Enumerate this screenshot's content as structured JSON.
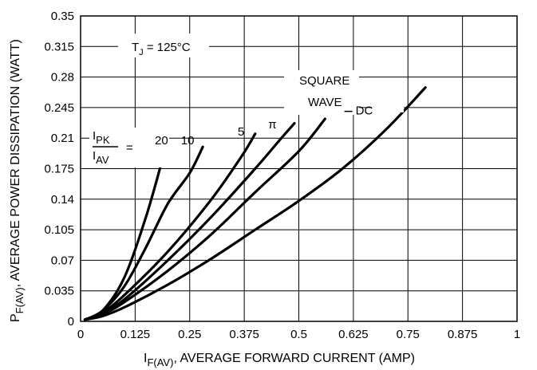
{
  "chart_data": {
    "type": "line",
    "title": "",
    "xlabel": {
      "prefix": "I",
      "sub": "F(AV)",
      "rest": ", AVERAGE FORWARD CURRENT (AMP)"
    },
    "ylabel": {
      "prefix": "P",
      "sub": "F(AV)",
      "rest": ", AVERAGE POWER DISSIPATION (WATT)"
    },
    "xlim": [
      0,
      1
    ],
    "ylim": [
      0,
      0.35
    ],
    "grid": true,
    "x_ticks": [
      0,
      0.125,
      0.25,
      0.375,
      0.5,
      0.625,
      0.75,
      0.875,
      1
    ],
    "x_tick_labels": [
      "0",
      "0.125",
      "0.25",
      "0.375",
      "0.5",
      "0.625",
      "0.75",
      "0.875",
      "1"
    ],
    "y_ticks": [
      0,
      0.035,
      0.07,
      0.105,
      0.14,
      0.175,
      0.21,
      0.245,
      0.28,
      0.315,
      0.35
    ],
    "y_tick_labels": [
      "0",
      "0.035",
      "0.07",
      "0.105",
      "0.14",
      "0.175",
      "0.21",
      "0.245",
      "0.28",
      "0.315",
      "0.35"
    ],
    "annotations": {
      "tj": {
        "prefix": "T",
        "sub": "J",
        "rest": " = 125°C"
      },
      "ratio": {
        "num_prefix": "I",
        "num_sub": "PK",
        "den_prefix": "I",
        "den_sub": "AV",
        "equals": "="
      },
      "square_wave_line1": "SQUARE",
      "square_wave_line2": "WAVE"
    },
    "series": [
      {
        "name": "20",
        "points": [
          [
            0.01,
            0.002
          ],
          [
            0.05,
            0.012
          ],
          [
            0.1,
            0.05
          ],
          [
            0.15,
            0.12
          ],
          [
            0.19,
            0.19
          ]
        ]
      },
      {
        "name": "10",
        "points": [
          [
            0.01,
            0.002
          ],
          [
            0.05,
            0.012
          ],
          [
            0.1,
            0.04
          ],
          [
            0.15,
            0.085
          ],
          [
            0.2,
            0.135
          ],
          [
            0.25,
            0.17
          ],
          [
            0.28,
            0.2
          ]
        ]
      },
      {
        "name": "5",
        "points": [
          [
            0.01,
            0.002
          ],
          [
            0.05,
            0.01
          ],
          [
            0.1,
            0.03
          ],
          [
            0.2,
            0.08
          ],
          [
            0.3,
            0.14
          ],
          [
            0.37,
            0.19
          ],
          [
            0.4,
            0.215
          ]
        ]
      },
      {
        "name": "π",
        "points": [
          [
            0.01,
            0.002
          ],
          [
            0.05,
            0.009
          ],
          [
            0.1,
            0.025
          ],
          [
            0.2,
            0.07
          ],
          [
            0.3,
            0.12
          ],
          [
            0.4,
            0.175
          ],
          [
            0.46,
            0.21
          ],
          [
            0.49,
            0.227
          ]
        ]
      },
      {
        "name": "",
        "points": [
          [
            0.01,
            0.002
          ],
          [
            0.05,
            0.008
          ],
          [
            0.1,
            0.022
          ],
          [
            0.2,
            0.058
          ],
          [
            0.3,
            0.1
          ],
          [
            0.4,
            0.148
          ],
          [
            0.5,
            0.195
          ],
          [
            0.56,
            0.232
          ]
        ]
      },
      {
        "name": "DC",
        "points": [
          [
            0.01,
            0.002
          ],
          [
            0.05,
            0.006
          ],
          [
            0.1,
            0.016
          ],
          [
            0.2,
            0.042
          ],
          [
            0.3,
            0.072
          ],
          [
            0.4,
            0.105
          ],
          [
            0.5,
            0.138
          ],
          [
            0.6,
            0.175
          ],
          [
            0.7,
            0.22
          ],
          [
            0.79,
            0.268
          ]
        ]
      }
    ]
  }
}
